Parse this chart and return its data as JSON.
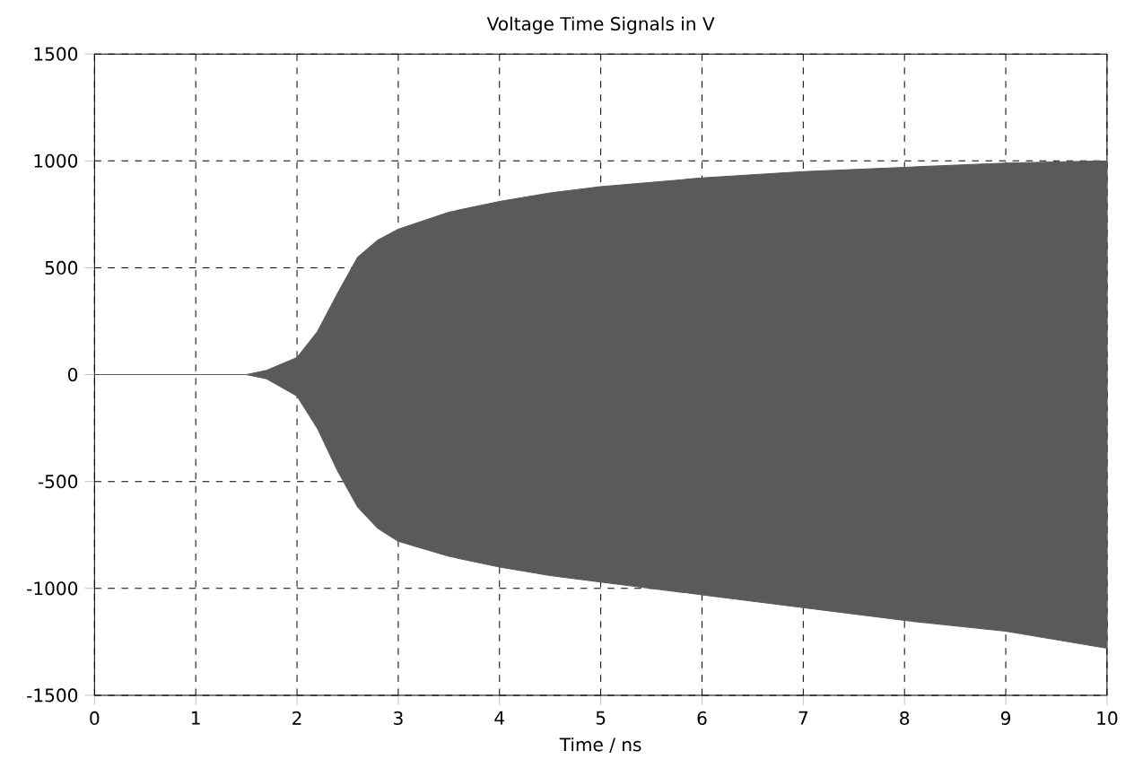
{
  "chart_data": {
    "type": "area",
    "title": "Voltage Time Signals in V",
    "xlabel": "Time / ns",
    "xlim": [
      0,
      10
    ],
    "xticks": [
      0,
      1,
      2,
      3,
      4,
      5,
      6,
      7,
      8,
      9,
      10
    ],
    "ylim": [
      -1500,
      1500
    ],
    "yticks": [
      -1500,
      -1000,
      -500,
      0,
      500,
      1000,
      1500
    ],
    "grid": true,
    "line_style": "dashed",
    "x": [
      0,
      0.5,
      1,
      1.5,
      1.7,
      2.0,
      2.2,
      2.4,
      2.6,
      2.8,
      3.0,
      3.5,
      4,
      4.5,
      5,
      6,
      7,
      8,
      9,
      10
    ],
    "series": [
      {
        "color": "#5a5a5a",
        "values": [
          0,
          0,
          0,
          0,
          20,
          80,
          200,
          380,
          550,
          630,
          680,
          760,
          810,
          850,
          880,
          920,
          950,
          970,
          990,
          1000
        ]
      },
      {
        "color": "#5a5a5a",
        "values": [
          0,
          0,
          0,
          0,
          -20,
          -100,
          -250,
          -450,
          -620,
          -720,
          -780,
          -850,
          -900,
          -940,
          -970,
          -1030,
          -1090,
          -1150,
          -1200,
          -1280
        ]
      }
    ]
  }
}
